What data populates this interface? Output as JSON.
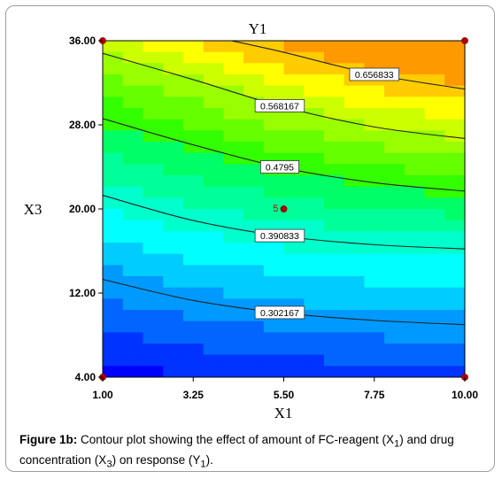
{
  "chart_data": {
    "type": "contour",
    "title": "Y1",
    "xlabel": "X1",
    "ylabel": "X3",
    "xlim": [
      1.0,
      10.0
    ],
    "ylim": [
      4.0,
      36.0
    ],
    "x_ticks": [
      "1.00",
      "3.25",
      "5.50",
      "7.75",
      "10.00"
    ],
    "y_ticks": [
      "4.00",
      "12.00",
      "20.00",
      "28.00",
      "36.00"
    ],
    "contours": [
      {
        "label": "0.302167",
        "level": 0.302167,
        "points": [
          [
            1.0,
            13.3
          ],
          [
            3.25,
            11.3
          ],
          [
            5.5,
            10.1
          ],
          [
            7.75,
            9.4
          ],
          [
            10.0,
            9.0
          ]
        ]
      },
      {
        "label": "0.390833",
        "level": 0.390833,
        "points": [
          [
            1.0,
            21.3
          ],
          [
            3.25,
            18.9
          ],
          [
            5.5,
            17.4
          ],
          [
            7.75,
            16.6
          ],
          [
            10.0,
            16.2
          ]
        ]
      },
      {
        "label": "0.4795",
        "level": 0.4795,
        "points": [
          [
            1.0,
            28.6
          ],
          [
            3.25,
            26.1
          ],
          [
            5.5,
            23.9
          ],
          [
            7.75,
            22.5
          ],
          [
            10.0,
            21.7
          ]
        ]
      },
      {
        "label": "0.568167",
        "level": 0.568167,
        "points": [
          [
            1.0,
            34.8
          ],
          [
            3.25,
            32.3
          ],
          [
            5.5,
            29.7
          ],
          [
            7.75,
            27.8
          ],
          [
            10.0,
            26.7
          ]
        ]
      },
      {
        "label": "0.656833",
        "level": 0.656833,
        "points": [
          [
            4.2,
            36.0
          ],
          [
            5.5,
            34.9
          ],
          [
            7.75,
            32.8
          ],
          [
            10.0,
            31.4
          ]
        ]
      }
    ],
    "design_points": [
      {
        "x": 1.0,
        "y": 36.0
      },
      {
        "x": 10.0,
        "y": 36.0
      },
      {
        "x": 1.0,
        "y": 4.0
      },
      {
        "x": 10.0,
        "y": 4.0
      },
      {
        "x": 5.5,
        "y": 20.0,
        "label": "5"
      }
    ],
    "colormap": [
      "#0000ff",
      "#0033ff",
      "#0066ff",
      "#0099ff",
      "#00ccff",
      "#00ffff",
      "#00ffcc",
      "#00ff99",
      "#00ff66",
      "#33ff00",
      "#66ff00",
      "#99ff00",
      "#ccff00",
      "#ffff00",
      "#ffcc00",
      "#ff9900"
    ],
    "grid": false
  },
  "caption": {
    "label": "Figure 1b:",
    "text": "Contour plot showing the effect of amount of FC-reagent (X1) and drug concentration (X3) on response (Y1)."
  }
}
